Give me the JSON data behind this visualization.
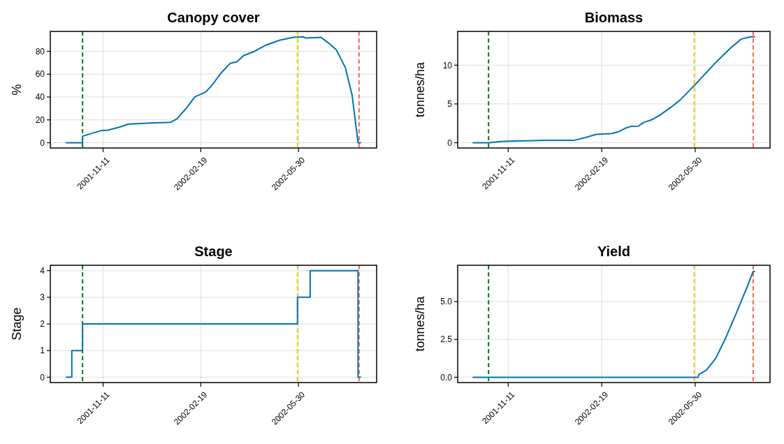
{
  "chart_data": [
    {
      "type": "line",
      "title": "Canopy cover",
      "ylabel": "%",
      "xlim": [
        "2001-09-18",
        "2002-08-18"
      ],
      "xticks": [
        "2001-11-11",
        "2002-02-19",
        "2002-05-30"
      ],
      "ylim": [
        -4.6,
        97.4
      ],
      "yticks": [
        0,
        20,
        40,
        60,
        80
      ],
      "grid": true,
      "ref_lines": [
        {
          "axis": "x",
          "value": "2001-10-21",
          "color": "#008000",
          "line_style": "dashed"
        },
        {
          "axis": "x",
          "value": "2002-05-29",
          "color": "#ffc400",
          "line_style": "dashed"
        },
        {
          "axis": "x",
          "value": "2002-07-31",
          "color": "#ff6347",
          "line_style": "dashed"
        }
      ],
      "series": [
        {
          "color": "#0072b2",
          "x": [
            "2001-10-04",
            "2001-10-21",
            "2001-10-21",
            "2001-11-01",
            "2001-11-09",
            "2001-11-16",
            "2001-11-28",
            "2001-12-07",
            "2001-12-29",
            "2002-01-19",
            "2002-01-26",
            "2002-02-05",
            "2002-02-13",
            "2002-02-24",
            "2002-03-02",
            "2002-03-12",
            "2002-03-21",
            "2002-03-28",
            "2002-04-04",
            "2002-04-15",
            "2002-04-27",
            "2002-05-11",
            "2002-05-25",
            "2002-06-04",
            "2002-06-06",
            "2002-06-22",
            "2002-06-30",
            "2002-07-08",
            "2002-07-17",
            "2002-07-24",
            "2002-07-30",
            "2002-08-02"
          ],
          "values": [
            0,
            0,
            5.7,
            8.6,
            10.6,
            11,
            13.7,
            16.3,
            17.3,
            17.8,
            21.2,
            31,
            40.2,
            44.3,
            49.8,
            61.2,
            69.4,
            70.8,
            76.3,
            80,
            85.5,
            89.8,
            92.2,
            92.7,
            91.6,
            92.2,
            87.1,
            81,
            65.7,
            41.2,
            0,
            0
          ]
        }
      ]
    },
    {
      "type": "line",
      "title": "Biomass",
      "ylabel": "tonnes/ha",
      "xlim": [
        "2001-09-18",
        "2002-08-18"
      ],
      "xticks": [
        "2001-11-11",
        "2002-02-19",
        "2002-05-30"
      ],
      "ylim": [
        -0.68,
        14.35
      ],
      "yticks": [
        0,
        5,
        10
      ],
      "grid": true,
      "ref_lines": [
        {
          "axis": "x",
          "value": "2001-10-21",
          "color": "#008000",
          "line_style": "dashed"
        },
        {
          "axis": "x",
          "value": "2002-05-29",
          "color": "#ffc400",
          "line_style": "dashed"
        },
        {
          "axis": "x",
          "value": "2002-07-31",
          "color": "#ff6347",
          "line_style": "dashed"
        }
      ],
      "series": [
        {
          "color": "#0072b2",
          "x": [
            "2001-10-04",
            "2001-10-21",
            "2001-11-05",
            "2001-11-25",
            "2001-12-19",
            "2002-01-20",
            "2002-02-01",
            "2002-02-13",
            "2002-03-02",
            "2002-03-10",
            "2002-03-16",
            "2002-03-22",
            "2002-03-30",
            "2002-04-05",
            "2002-04-14",
            "2002-04-22",
            "2002-05-04",
            "2002-05-14",
            "2002-05-30",
            "2002-06-19",
            "2002-07-06",
            "2002-07-18",
            "2002-07-28",
            "2002-08-02"
          ],
          "values": [
            0,
            0,
            0.18,
            0.24,
            0.3,
            0.3,
            0.64,
            1.07,
            1.19,
            1.46,
            1.86,
            2.1,
            2.13,
            2.62,
            2.99,
            3.54,
            4.57,
            5.52,
            7.5,
            10.09,
            12.13,
            13.35,
            13.66,
            13.66
          ]
        }
      ]
    },
    {
      "type": "step",
      "title": "Stage",
      "ylabel": "Stage",
      "xlim": [
        "2001-09-18",
        "2002-08-18"
      ],
      "xticks": [
        "2001-11-11",
        "2002-02-19",
        "2002-05-30"
      ],
      "ylim": [
        -0.2,
        4.2
      ],
      "yticks": [
        0,
        1,
        2,
        3,
        4
      ],
      "grid": true,
      "ref_lines": [
        {
          "axis": "x",
          "value": "2001-10-21",
          "color": "#008000",
          "line_style": "dashed"
        },
        {
          "axis": "x",
          "value": "2002-05-29",
          "color": "#ffc400",
          "line_style": "dashed"
        },
        {
          "axis": "x",
          "value": "2002-07-31",
          "color": "#ff6347",
          "line_style": "dashed"
        }
      ],
      "series": [
        {
          "color": "#0072b2",
          "x": [
            "2001-10-04",
            "2001-10-10",
            "2001-10-21",
            "2002-05-29",
            "2002-06-11",
            "2002-07-30",
            "2002-08-02"
          ],
          "values": [
            0,
            1,
            2,
            3,
            4,
            0,
            0
          ]
        }
      ]
    },
    {
      "type": "line",
      "title": "Yield",
      "ylabel": "tonnes/ha",
      "xlim": [
        "2001-09-18",
        "2002-08-18"
      ],
      "xticks": [
        "2001-11-11",
        "2002-02-19",
        "2002-05-30"
      ],
      "ylim": [
        -0.35,
        7.4
      ],
      "yticks": [
        {
          "value": 0,
          "label": "0.0"
        },
        {
          "value": 2.5,
          "label": "2.5"
        },
        {
          "value": 5,
          "label": "5.0"
        }
      ],
      "grid": true,
      "ref_lines": [
        {
          "axis": "x",
          "value": "2001-10-21",
          "color": "#008000",
          "line_style": "dashed"
        },
        {
          "axis": "x",
          "value": "2002-05-29",
          "color": "#ffc400",
          "line_style": "dashed"
        },
        {
          "axis": "x",
          "value": "2002-07-31",
          "color": "#ff6347",
          "line_style": "dashed"
        }
      ],
      "series": [
        {
          "color": "#0072b2",
          "x": [
            "2001-10-04",
            "2002-06-02",
            "2002-06-03",
            "2002-06-11",
            "2002-06-21",
            "2002-07-01",
            "2002-07-13",
            "2002-07-25",
            "2002-07-31",
            "2002-08-02"
          ],
          "values": [
            0,
            0,
            0.19,
            0.47,
            1.26,
            2.52,
            4.25,
            6.05,
            7.0,
            7.0
          ]
        }
      ]
    }
  ]
}
